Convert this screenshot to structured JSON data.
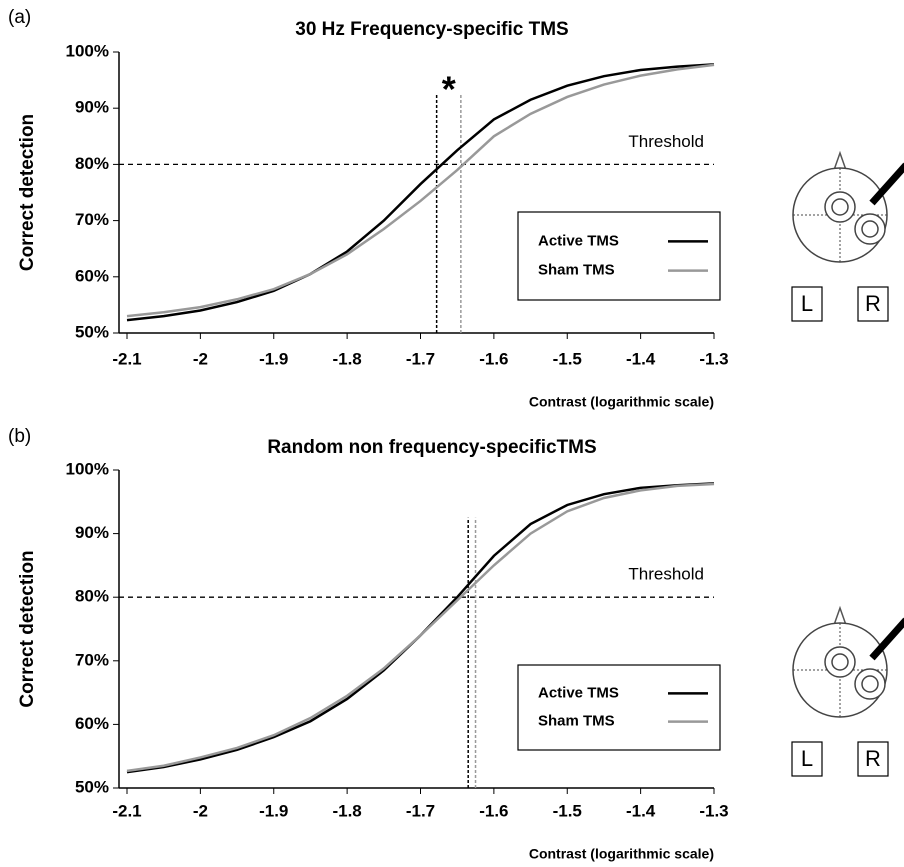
{
  "chart_data": [
    {
      "type": "line",
      "panel_label": "(a)",
      "title": "30 Hz Frequency-specific TMS",
      "xlabel": "Contrast (logarithmic scale)",
      "ylabel": "Correct detection",
      "x": [
        -2.1,
        -2.05,
        -2.0,
        -1.95,
        -1.9,
        -1.85,
        -1.8,
        -1.75,
        -1.7,
        -1.65,
        -1.6,
        -1.55,
        -1.5,
        -1.45,
        -1.4,
        -1.35,
        -1.3
      ],
      "series": [
        {
          "name": "Active TMS",
          "color": "#000000",
          "threshold_x": -1.678,
          "values": [
            52.3,
            53,
            54,
            55.5,
            57.5,
            60.5,
            64.5,
            70,
            76.5,
            82.5,
            88,
            91.5,
            94,
            95.7,
            96.8,
            97.4,
            97.8
          ]
        },
        {
          "name": "Sham TMS",
          "color": "#999999",
          "threshold_x": -1.645,
          "values": [
            53,
            53.7,
            54.6,
            56,
            57.8,
            60.5,
            64,
            68.5,
            73.5,
            79,
            85,
            89,
            92,
            94.2,
            95.8,
            96.9,
            97.7
          ]
        }
      ],
      "xlim": [
        -2.1,
        -1.3
      ],
      "xticks": [
        -2.1,
        -2,
        -1.9,
        -1.8,
        -1.7,
        -1.6,
        -1.5,
        -1.4,
        -1.3
      ],
      "ylim": [
        50,
        100
      ],
      "yticks": [
        {
          "value": 50,
          "label": "50%"
        },
        {
          "value": 60,
          "label": "60%"
        },
        {
          "value": 70,
          "label": "70%"
        },
        {
          "value": 80,
          "label": "80%"
        },
        {
          "value": 90,
          "label": "90%"
        },
        {
          "value": 100,
          "label": "100%"
        }
      ],
      "threshold": 80,
      "threshold_label": "Threshold",
      "annotation": "*",
      "legend": "lower right",
      "hemisphere_labels": [
        "L",
        "R"
      ]
    },
    {
      "type": "line",
      "panel_label": "(b)",
      "title": "Random non frequency-specificTMS",
      "xlabel": "Contrast (logarithmic scale)",
      "ylabel": "Correct detection",
      "x": [
        -2.1,
        -2.05,
        -2.0,
        -1.95,
        -1.9,
        -1.85,
        -1.8,
        -1.75,
        -1.7,
        -1.65,
        -1.6,
        -1.55,
        -1.5,
        -1.45,
        -1.4,
        -1.35,
        -1.3
      ],
      "series": [
        {
          "name": "Active TMS",
          "color": "#000000",
          "threshold_x": -1.635,
          "values": [
            52.5,
            53.3,
            54.5,
            56,
            58,
            60.5,
            64,
            68.5,
            74,
            80,
            86.5,
            91.5,
            94.5,
            96.2,
            97.2,
            97.6,
            97.9
          ]
        },
        {
          "name": "Sham TMS",
          "color": "#999999",
          "threshold_x": -1.625,
          "values": [
            52.7,
            53.5,
            54.8,
            56.3,
            58.3,
            61,
            64.5,
            68.8,
            74,
            79.5,
            85,
            90,
            93.5,
            95.6,
            96.8,
            97.5,
            97.8
          ]
        }
      ],
      "xlim": [
        -2.1,
        -1.3
      ],
      "xticks": [
        -2.1,
        -2,
        -1.9,
        -1.8,
        -1.7,
        -1.6,
        -1.5,
        -1.4,
        -1.3
      ],
      "ylim": [
        50,
        100
      ],
      "yticks": [
        {
          "value": 50,
          "label": "50%"
        },
        {
          "value": 60,
          "label": "60%"
        },
        {
          "value": 70,
          "label": "70%"
        },
        {
          "value": 80,
          "label": "80%"
        },
        {
          "value": 90,
          "label": "90%"
        },
        {
          "value": 100,
          "label": "100%"
        }
      ],
      "threshold": 80,
      "threshold_label": "Threshold",
      "legend": "lower right",
      "hemisphere_labels": [
        "L",
        "R"
      ]
    }
  ]
}
